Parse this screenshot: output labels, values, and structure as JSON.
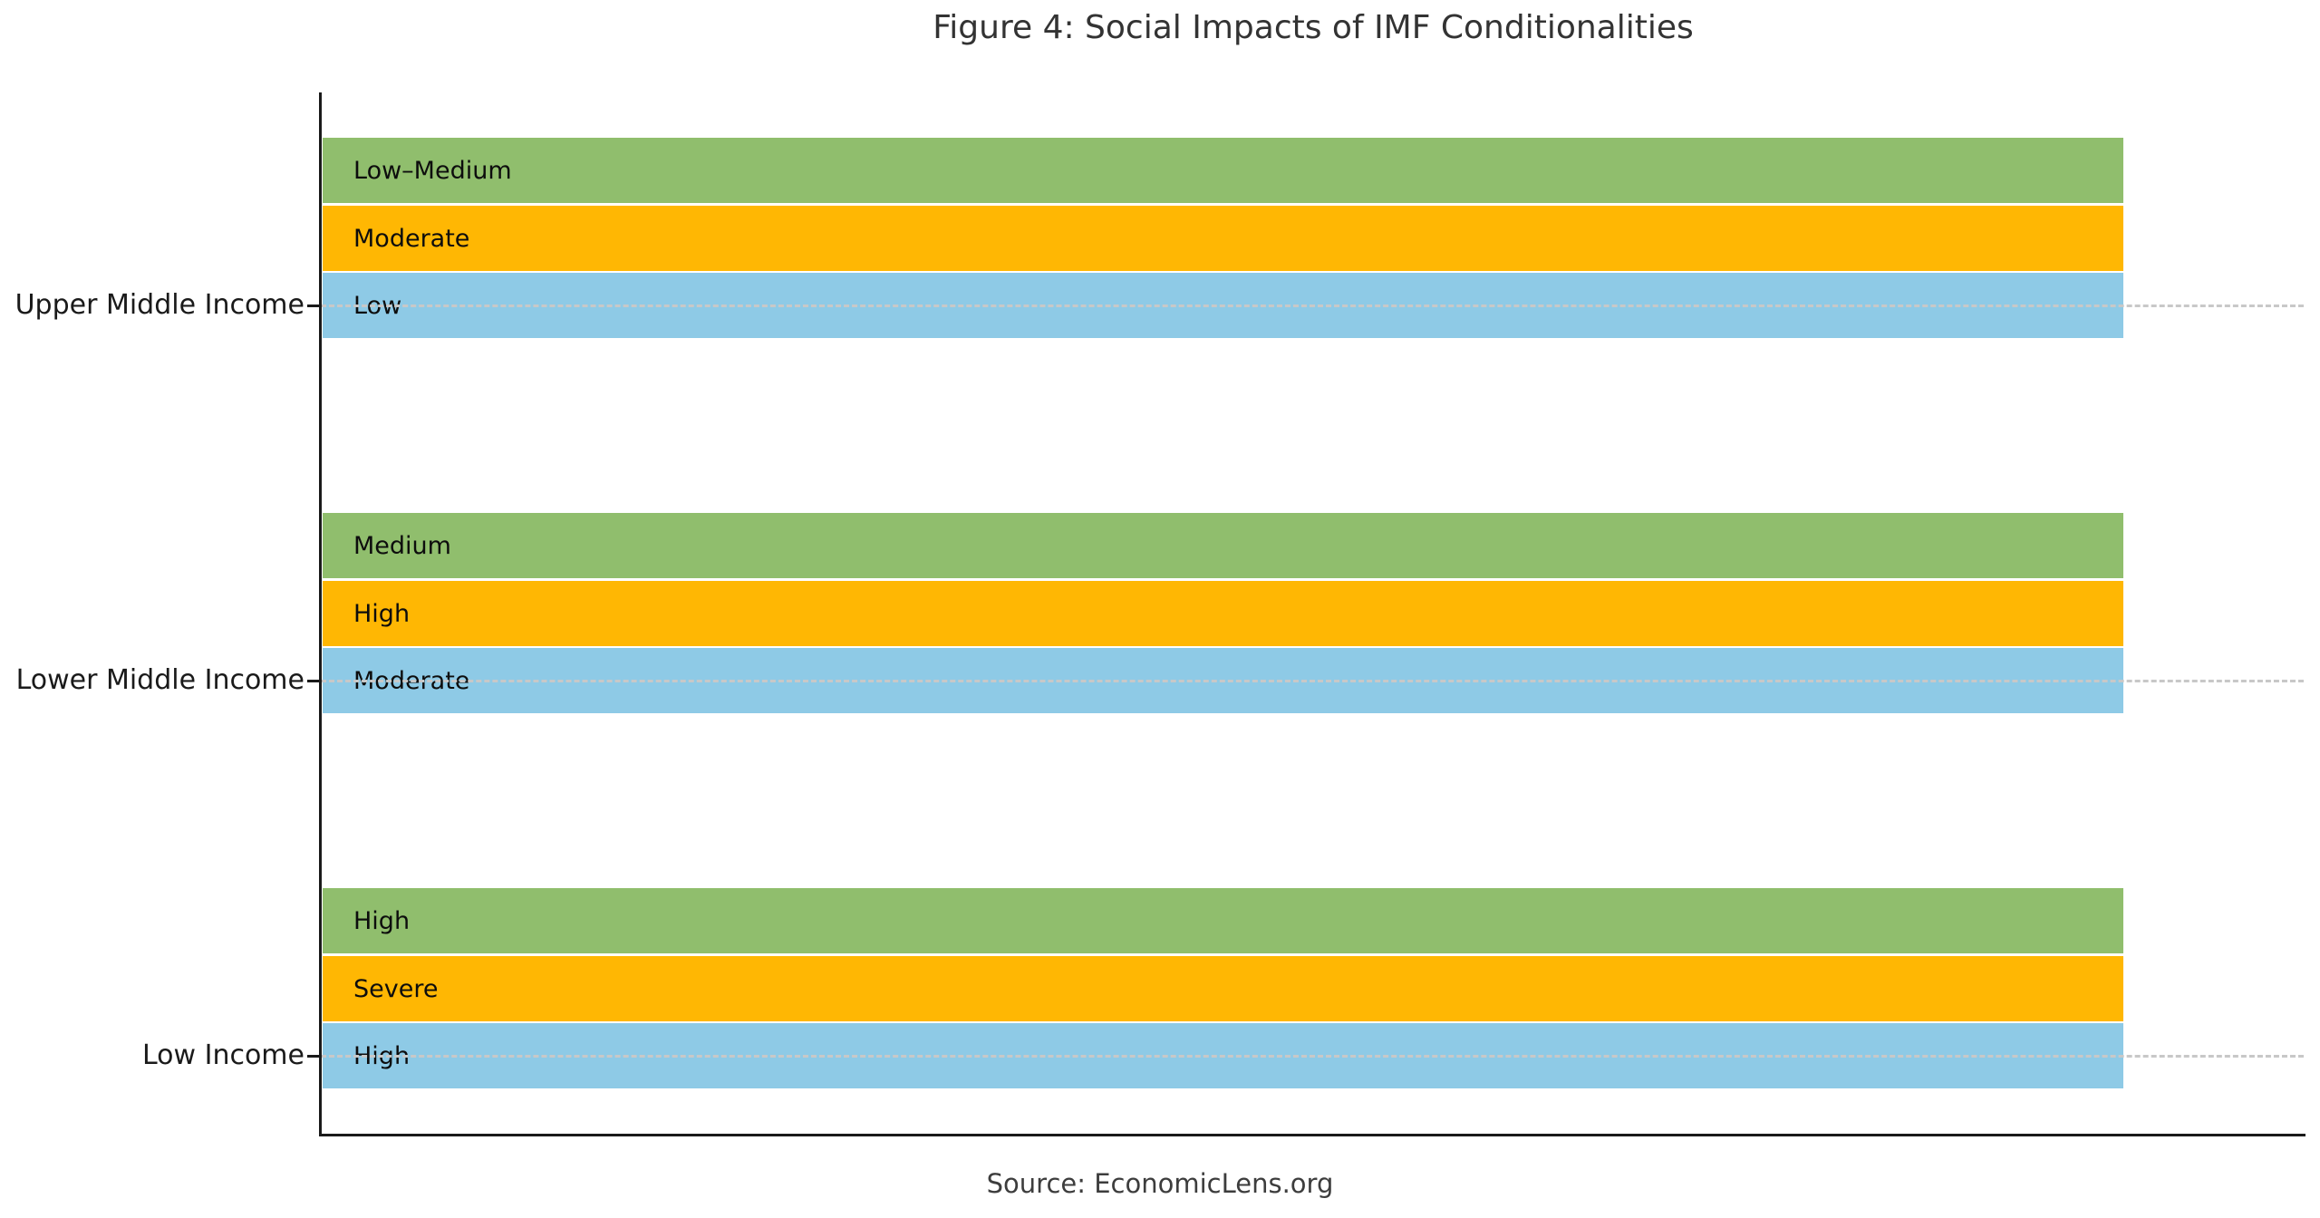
{
  "chart_data": {
    "type": "bar",
    "orientation": "horizontal",
    "title": "Figure 4: Social Impacts of IMF Conditionalities",
    "source": "Source: EconomicLens.org",
    "xlabel": "",
    "ylabel": "",
    "x_axis_ticks_visible": false,
    "grid": "dashed horizontal gridline at each category position",
    "legend_position": "none",
    "bars_equal_length": true,
    "bar_relative_value": 1.0,
    "colors": {
      "green": "#90BE6D",
      "orange": "#FFB703",
      "blue": "#8ECAE6"
    },
    "categories": [
      "Upper Middle Income",
      "Lower Middle Income",
      "Low Income"
    ],
    "groups": [
      {
        "category": "Upper Middle Income",
        "bars": [
          {
            "label": "Low–Medium",
            "color": "#90BE6D"
          },
          {
            "label": "Moderate",
            "color": "#FFB703"
          },
          {
            "label": "Low",
            "color": "#8ECAE6"
          }
        ]
      },
      {
        "category": "Lower Middle Income",
        "bars": [
          {
            "label": "Medium",
            "color": "#90BE6D"
          },
          {
            "label": "High",
            "color": "#FFB703"
          },
          {
            "label": "Moderate",
            "color": "#8ECAE6"
          }
        ]
      },
      {
        "category": "Low Income",
        "bars": [
          {
            "label": "High",
            "color": "#90BE6D"
          },
          {
            "label": "Severe",
            "color": "#FFB703"
          },
          {
            "label": "High",
            "color": "#8ECAE6"
          }
        ]
      }
    ]
  }
}
